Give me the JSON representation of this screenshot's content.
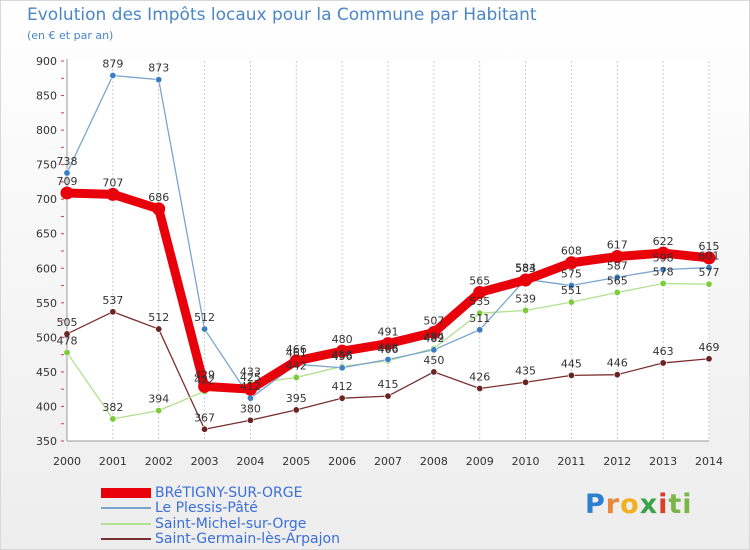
{
  "header": {
    "title": "Evolution des Impôts locaux pour la Commune par Habitant",
    "subtitle": "(en € et par an)"
  },
  "brand": {
    "letters": [
      "P",
      "r",
      "o",
      "x",
      "i",
      "ti"
    ]
  },
  "chart_data": {
    "type": "line",
    "title": "Evolution des Impôts locaux pour la Commune par Habitant",
    "subtitle": "(en € et par an)",
    "xlabel": "",
    "ylabel": "",
    "x": [
      "2000",
      "2001",
      "2002",
      "2003",
      "2004",
      "2005",
      "2006",
      "2007",
      "2008",
      "2009",
      "2010",
      "2011",
      "2012",
      "2013",
      "2014"
    ],
    "ylim": [
      350,
      900
    ],
    "yticks": [
      "350",
      "400",
      "450",
      "500",
      "550",
      "600",
      "650",
      "700",
      "750",
      "800",
      "850",
      "900"
    ],
    "grid": "vertical",
    "legend_position": "bottom-left",
    "series": [
      {
        "name": "BRéTIGNY-SUR-ORGE",
        "color": "#e8000b",
        "marker": "#e8000b",
        "values": [
          709,
          707,
          686,
          429,
          425,
          466,
          480,
          491,
          507,
          565,
          583,
          608,
          617,
          622,
          615
        ],
        "labels": [
          "709",
          "707",
          "686",
          "429",
          "425",
          "466",
          "480",
          "491",
          "507",
          "565",
          "583",
          "608",
          "617",
          "622",
          "615"
        ]
      },
      {
        "name": "Le Plessis-Pâté",
        "color": "#7ba5cf",
        "marker": "#3c7fc0",
        "values": [
          738,
          879,
          873,
          512,
          412,
          461,
          456,
          468,
          482,
          511,
          584,
          575,
          587,
          598,
          601
        ],
        "labels": [
          "738",
          "879",
          "873",
          "512",
          "412",
          "461",
          "456",
          "468",
          "482",
          "511",
          "584",
          "575",
          "587",
          "598",
          "601"
        ]
      },
      {
        "name": "Saint-Michel-sur-Orge",
        "color": "#b2e090",
        "marker": "#7ccc3a",
        "values": [
          478,
          382,
          394,
          422,
          433,
          442,
          458,
          466,
          484,
          535,
          539,
          551,
          565,
          578,
          577
        ],
        "labels": [
          "478",
          "382",
          "394",
          "422",
          "433",
          "442",
          "458",
          "466",
          "484",
          "535",
          "539",
          "551",
          "565",
          "578",
          "577"
        ]
      },
      {
        "name": "Saint-Germain-lès-Arpajon",
        "color": "#7a3030",
        "marker": "#6b2424",
        "values": [
          505,
          537,
          512,
          367,
          380,
          395,
          412,
          415,
          450,
          426,
          435,
          445,
          446,
          463,
          469
        ],
        "labels": [
          "505",
          "537",
          "512",
          "367",
          "380",
          "395",
          "412",
          "415",
          "450",
          "426",
          "435",
          "445",
          "446",
          "463",
          "469"
        ]
      }
    ]
  }
}
